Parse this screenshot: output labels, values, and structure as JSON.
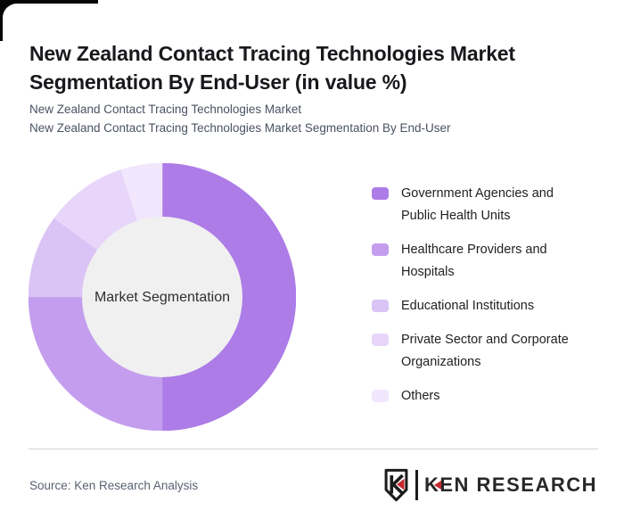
{
  "header": {
    "title": "New Zealand Contact Tracing Technologies Market Segmentation By End-User (in value %)",
    "subtitle_line1": "New Zealand Contact Tracing Technologies Market",
    "subtitle_line2": "New Zealand Contact Tracing Technologies Market Segmentation By End-User"
  },
  "chart_data": {
    "type": "pie",
    "variant": "donut",
    "title": "New Zealand Contact Tracing Technologies Market Segmentation By End-User (in value %)",
    "unit": "value %",
    "categories": [
      "Government Agencies and Public Health Units",
      "Healthcare Providers and Hospitals",
      "Educational Institutions",
      "Private Sector and Corporate Organizations",
      "Others"
    ],
    "values": [
      50,
      25,
      10,
      10,
      5
    ],
    "colors": [
      "#ad7ce7",
      "#c49dee",
      "#dac3f5",
      "#e7d5fa",
      "#f2e6fd"
    ],
    "start_angle_deg": 0,
    "direction": "clockwise",
    "inner_radius_ratio": 0.6,
    "center_fill": "#f0f0f0",
    "center_label": "Market Segmentation",
    "legend_position": "right"
  },
  "footer": {
    "source_text": "Source: Ken Research Analysis",
    "brand_name": "KEN RESEARCH"
  },
  "theme": {
    "edge_color": "#060606",
    "title_color": "#17191c",
    "subtitle_color": "#4a5262",
    "divider_color": "#d2d3d8",
    "source_color": "#596271",
    "logo_color": "#272727",
    "logo_accent_red": "#c5282f"
  }
}
